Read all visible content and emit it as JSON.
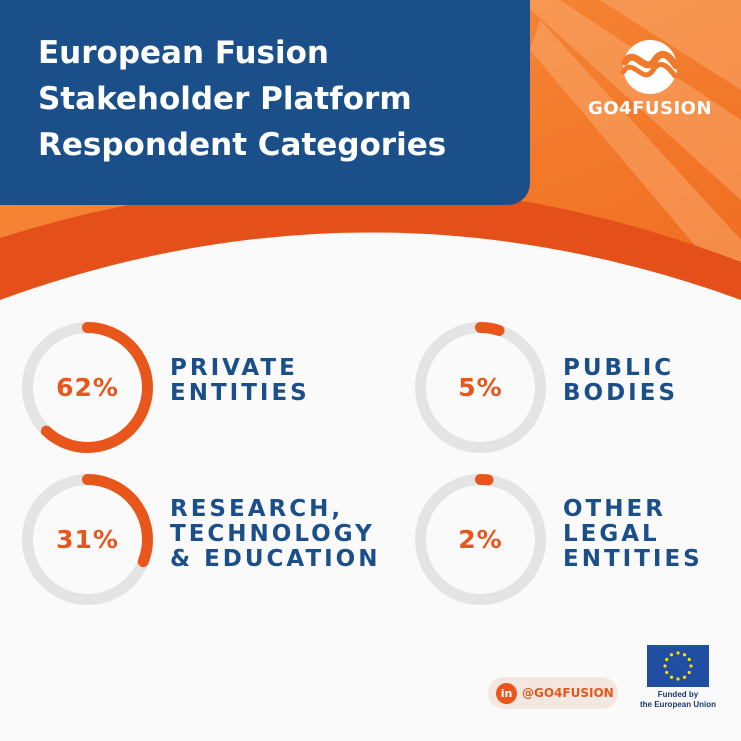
{
  "title": {
    "line1": "European Fusion",
    "line2": "Stakeholder Platform",
    "line3": "Respondent Categories"
  },
  "brand": {
    "logo_text": "GO4FUSION"
  },
  "colors": {
    "navy": "#1b4f8a",
    "orange": "#e8561c",
    "ring_track": "#e4e4e4"
  },
  "chart_data": {
    "type": "pie",
    "style": "donut-rings",
    "categories": [
      "PRIVATE ENTITIES",
      "PUBLIC BODIES",
      "RESEARCH, TECHNOLOGY & EDUCATION",
      "OTHER LEGAL ENTITIES"
    ],
    "values": [
      62,
      5,
      31,
      2
    ],
    "unit": "%"
  },
  "stats": [
    {
      "value_label": "62%",
      "label_lines": [
        "PRIVATE",
        "ENTITIES"
      ]
    },
    {
      "value_label": "5%",
      "label_lines": [
        "PUBLIC",
        "BODIES"
      ]
    },
    {
      "value_label": "31%",
      "label_lines": [
        "RESEARCH,",
        "TECHNOLOGY",
        "& EDUCATION"
      ]
    },
    {
      "value_label": "2%",
      "label_lines": [
        "OTHER",
        "LEGAL",
        "ENTITIES"
      ]
    }
  ],
  "social": {
    "icon": "linkedin-icon",
    "icon_text": "in",
    "handle": "@GO4FUSION"
  },
  "eu": {
    "line1": "Funded by",
    "line2": "the European Union"
  }
}
